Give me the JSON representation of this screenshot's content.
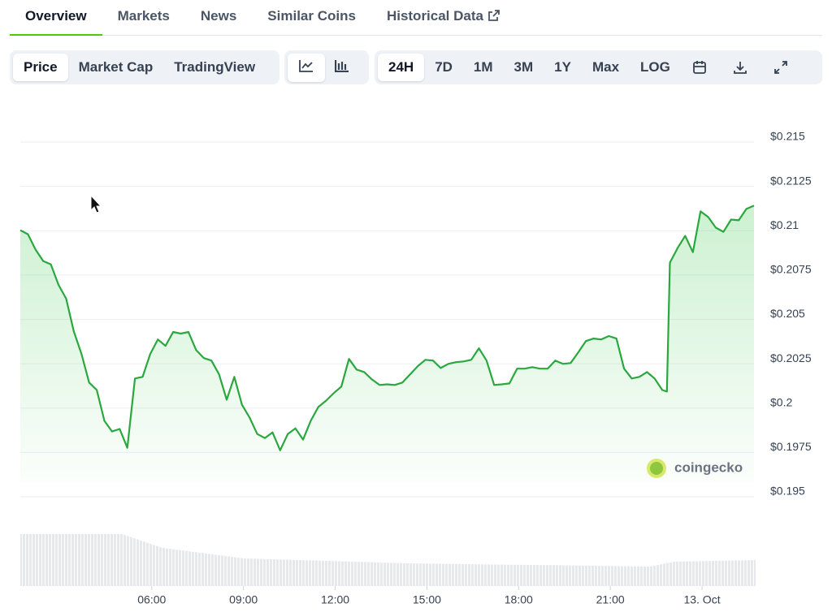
{
  "tabs": [
    "Overview",
    "Markets",
    "News",
    "Similar Coins",
    "Historical Data"
  ],
  "chart_toggles": [
    "Price",
    "Market Cap",
    "TradingView"
  ],
  "ranges": [
    "24H",
    "7D",
    "1M",
    "3M",
    "1Y",
    "Max",
    "LOG"
  ],
  "watermark": "coingecko",
  "chart_data": {
    "type": "line",
    "color": "#2aa83f",
    "x": [
      1.7,
      1.95,
      2.2,
      2.45,
      2.7,
      2.95,
      3.2,
      3.45,
      3.7,
      3.95,
      4.2,
      4.45,
      4.7,
      4.95,
      5.2,
      5.45,
      5.7,
      5.95,
      6.2,
      6.45,
      6.7,
      6.95,
      7.2,
      7.45,
      7.7,
      7.95,
      8.2,
      8.45,
      8.7,
      8.95,
      9.2,
      9.45,
      9.7,
      9.95,
      10.2,
      10.45,
      10.7,
      10.95,
      11.2,
      11.45,
      11.7,
      11.95,
      12.2,
      12.45,
      12.7,
      12.95,
      13.2,
      13.45,
      13.7,
      13.95,
      14.2,
      14.45,
      14.7,
      14.95,
      15.2,
      15.45,
      15.7,
      15.95,
      16.2,
      16.45,
      16.7,
      16.95,
      17.2,
      17.45,
      17.7,
      17.95,
      18.2,
      18.45,
      18.7,
      18.95,
      19.2,
      19.45,
      19.7,
      19.95,
      20.2,
      20.45,
      20.7,
      20.95,
      21.2,
      21.45,
      21.7,
      21.95,
      22.2,
      22.45,
      22.7,
      22.85,
      22.95,
      23.2,
      23.45,
      23.7,
      23.95,
      24.2,
      24.45,
      24.7,
      24.95,
      25.2,
      25.45,
      25.7
    ],
    "values": [
      0.21003,
      0.2098,
      0.20893,
      0.20829,
      0.2081,
      0.20695,
      0.20617,
      0.20433,
      0.20305,
      0.20144,
      0.20102,
      0.19928,
      0.19868,
      0.19882,
      0.19776,
      0.20167,
      0.20176,
      0.20305,
      0.20387,
      0.20351,
      0.20429,
      0.2042,
      0.20429,
      0.20328,
      0.20282,
      0.20268,
      0.2019,
      0.20047,
      0.20176,
      0.20019,
      0.19946,
      0.19854,
      0.19831,
      0.19863,
      0.19762,
      0.19854,
      0.19886,
      0.19822,
      0.19928,
      0.20006,
      0.20042,
      0.20084,
      0.20121,
      0.20277,
      0.20217,
      0.20203,
      0.20162,
      0.2013,
      0.20134,
      0.2013,
      0.20144,
      0.2019,
      0.20236,
      0.20272,
      0.20268,
      0.20226,
      0.20249,
      0.20259,
      0.20263,
      0.20272,
      0.20337,
      0.20268,
      0.2013,
      0.20134,
      0.20139,
      0.20222,
      0.20222,
      0.20231,
      0.20222,
      0.20222,
      0.20268,
      0.20249,
      0.20254,
      0.20314,
      0.20378,
      0.20392,
      0.20387,
      0.20406,
      0.20392,
      0.20222,
      0.20167,
      0.20176,
      0.20203,
      0.20167,
      0.20102,
      0.20093,
      0.2082,
      0.20902,
      0.20971,
      0.20879,
      0.21109,
      0.21077,
      0.21017,
      0.20994,
      0.21063,
      0.21059,
      0.21123,
      0.21141
    ],
    "xlim": [
      1.7,
      25.7
    ],
    "xticks": [
      {
        "value": 6,
        "label": "06:00"
      },
      {
        "value": 9,
        "label": "09:00"
      },
      {
        "value": 12,
        "label": "12:00"
      },
      {
        "value": 15,
        "label": "15:00"
      },
      {
        "value": 18,
        "label": "18:00"
      },
      {
        "value": 21,
        "label": "21:00"
      },
      {
        "value": 24,
        "label": "13. Oct"
      }
    ],
    "ylim": [
      0.195,
      0.215
    ],
    "yticks": [
      {
        "value": 0.195,
        "label": "$0.195"
      },
      {
        "value": 0.1975,
        "label": "$0.1975"
      },
      {
        "value": 0.2,
        "label": "$0.2"
      },
      {
        "value": 0.2025,
        "label": "$0.2025"
      },
      {
        "value": 0.205,
        "label": "$0.205"
      },
      {
        "value": 0.2075,
        "label": "$0.2075"
      },
      {
        "value": 0.21,
        "label": "$0.21"
      },
      {
        "value": 0.2125,
        "label": "$0.2125"
      },
      {
        "value": 0.215,
        "label": "$0.215"
      }
    ],
    "grid": true
  }
}
